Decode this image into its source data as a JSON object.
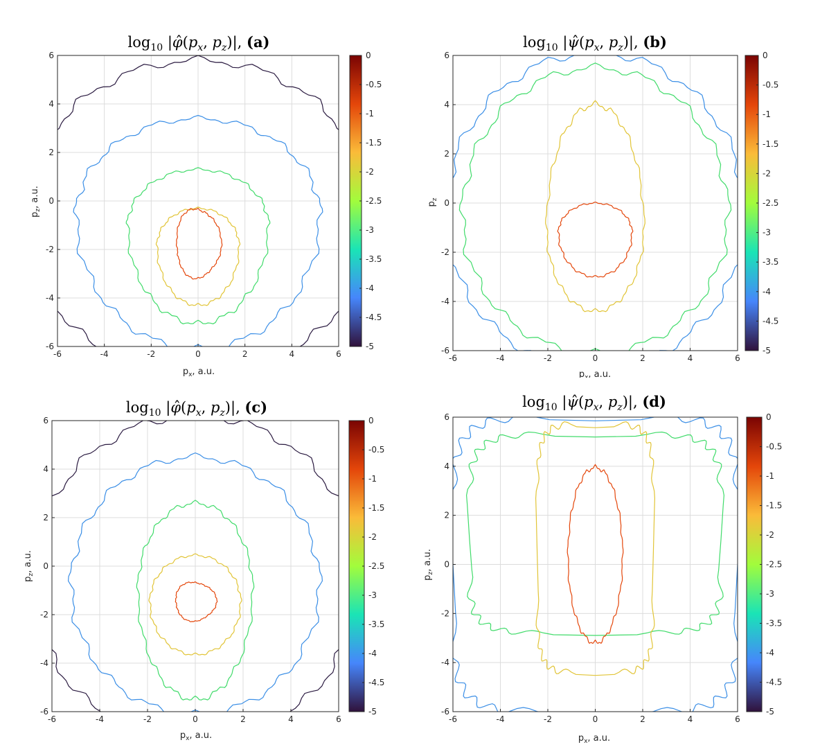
{
  "chart_data": [
    {
      "type": "contour",
      "panel": "a",
      "title_func": "φ",
      "title_text": "log10 |φ̂(px, pz)|, (a)",
      "title_label": "(a)",
      "xlabel": "p_x, a.u.",
      "ylabel": "p_z, a.u.",
      "xlim": [
        -6,
        6
      ],
      "ylim": [
        -6,
        6
      ],
      "xticks": [
        -6,
        -4,
        -2,
        0,
        2,
        4,
        6
      ],
      "yticks": [
        -6,
        -4,
        -2,
        0,
        2,
        4,
        6
      ],
      "colorbar": {
        "range": [
          -5,
          0
        ],
        "ticks": [
          0,
          -0.5,
          -1,
          -1.5,
          -2,
          -2.5,
          -3,
          -3.5,
          -4,
          -4.5,
          -5
        ]
      },
      "grid": true,
      "contours": [
        {
          "level": -1,
          "shape": "blob",
          "cx": 0,
          "cy": -1.9,
          "rx": 0.95,
          "ry_top": 1.6,
          "ry_bot": 1.25
        },
        {
          "level": -2,
          "shape": "ellipse",
          "cx": 0,
          "cy": -1.85,
          "rx": 1.75,
          "ry_top": 1.55,
          "ry_bot": 2.45
        },
        {
          "level": -3,
          "shape": "ellipse",
          "cx": 0,
          "cy": -1.0,
          "rx": 3.0,
          "ry_top": 2.3,
          "ry_bot": 4.05
        },
        {
          "level": -4,
          "shape": "ellipse",
          "cx": 0,
          "cy": -0.6,
          "rx": 5.2,
          "ry_top": 4.0,
          "ry_bot": 5.5
        },
        {
          "level": -5,
          "shape": "ellipse",
          "cx": 0,
          "cy": -0.4,
          "rx": 7.3,
          "ry_top": 6.2,
          "ry_bot": 7.0
        }
      ]
    },
    {
      "type": "contour",
      "panel": "b",
      "title_func": "ψ",
      "title_text": "log10 |ψ̂(px, pz)|, (b)",
      "title_label": "(b)",
      "xlabel": "p_x, a.u.",
      "ylabel": "p_z",
      "xlim": [
        -6,
        6
      ],
      "ylim": [
        -6,
        6
      ],
      "xticks": [
        -6,
        -4,
        -2,
        0,
        2,
        4,
        6
      ],
      "yticks": [
        -6,
        -4,
        -2,
        0,
        2,
        4,
        6
      ],
      "colorbar": {
        "range": [
          -5,
          0
        ],
        "ticks": [
          0,
          -0.5,
          -1,
          -1.5,
          -2,
          -2.5,
          -3,
          -3.5,
          -4,
          -4.5,
          -5
        ]
      },
      "grid": true,
      "contours": [
        {
          "level": -1,
          "shape": "ellipse",
          "cx": 0,
          "cy": -1.2,
          "rx": 1.55,
          "ry_top": 1.2,
          "ry_bot": 1.8
        },
        {
          "level": -2,
          "shape": "ellipse",
          "cx": 0,
          "cy": -1.0,
          "rx": 2.05,
          "ry_top": 5.0,
          "ry_bot": 3.4
        },
        {
          "level": -3,
          "shape": "ellipse",
          "cx": 0,
          "cy": -0.5,
          "rx": 5.6,
          "ry_top": 6.0,
          "ry_bot": 5.6
        },
        {
          "level": -4,
          "shape": "ellipse",
          "cx": 0,
          "cy": -0.5,
          "rx": 6.3,
          "ry_top": 6.6,
          "ry_bot": 6.2
        }
      ]
    },
    {
      "type": "contour",
      "panel": "c",
      "title_func": "φ",
      "title_text": "log10 |φ̂(px, pz)|, (c)",
      "title_label": "(c)",
      "xlabel": "p_x, a.u.",
      "ylabel": "p_z, a.u.",
      "xlim": [
        -6,
        6
      ],
      "ylim": [
        -6,
        6
      ],
      "xticks": [
        -6,
        -4,
        -2,
        0,
        2,
        4,
        6
      ],
      "yticks": [
        -6,
        -4,
        -2,
        0,
        2,
        4,
        6
      ],
      "colorbar": {
        "range": [
          -5,
          0
        ],
        "ticks": [
          0,
          -0.5,
          -1,
          -1.5,
          -2,
          -2.5,
          -3,
          -3.5,
          -4,
          -4.5,
          -5
        ]
      },
      "grid": true,
      "contours": [
        {
          "level": -1,
          "shape": "blob",
          "cx": 0,
          "cy": -1.5,
          "rx": 0.85,
          "ry_top": 0.85,
          "ry_bot": 0.75
        },
        {
          "level": -2,
          "shape": "ellipse",
          "cx": 0,
          "cy": -1.5,
          "rx": 1.9,
          "ry_top": 1.95,
          "ry_bot": 2.15
        },
        {
          "level": -3,
          "shape": "ellipse",
          "cx": 0,
          "cy": -1.0,
          "rx": 2.4,
          "ry_top": 3.6,
          "ry_bot": 4.5
        },
        {
          "level": -4,
          "shape": "ellipse",
          "cx": 0,
          "cy": -0.8,
          "rx": 5.2,
          "ry_top": 5.3,
          "ry_bot": 5.3
        },
        {
          "level": -5,
          "shape": "ellipse",
          "cx": 0,
          "cy": -0.5,
          "rx": 6.8,
          "ry_top": 6.7,
          "ry_bot": 6.8
        }
      ]
    },
    {
      "type": "contour",
      "panel": "d",
      "title_func": "ψ",
      "title_text": "log10 |ψ̂(px, pz)|, (d)",
      "title_label": "(d)",
      "xlabel": "p_x, a.u.",
      "ylabel": "p_z, a.u.",
      "xlim": [
        -6,
        6
      ],
      "ylim": [
        -6,
        6
      ],
      "xticks": [
        -6,
        -4,
        -2,
        0,
        2,
        4,
        6
      ],
      "yticks": [
        -6,
        -4,
        -2,
        0,
        2,
        4,
        6
      ],
      "colorbar": {
        "range": [
          -5,
          0
        ],
        "ticks": [
          0,
          -0.5,
          -1,
          -1.5,
          -2,
          -2.5,
          -3,
          -3.5,
          -4,
          -4.5,
          -5
        ]
      },
      "grid": true,
      "contours": [
        {
          "level": -1,
          "shape": "ellipse",
          "cx": 0,
          "cy": 0.35,
          "rx": 1.15,
          "ry_top": 3.6,
          "ry_bot": 3.55
        },
        {
          "level": -2,
          "shape": "rect",
          "cx": 0,
          "cy": 0.5,
          "rx": 2.45,
          "ry_top": 5.2,
          "ry_bot": 4.9
        },
        {
          "level": -3,
          "shape": "rect",
          "cx": 0,
          "cy": 1.0,
          "rx": 5.3,
          "ry_top": 4.3,
          "ry_bot": 3.8
        },
        {
          "level": -4,
          "shape": "rect",
          "cx": 0,
          "cy": 0.0,
          "rx": 6.0,
          "ry_top": 6.0,
          "ry_bot": 6.0
        }
      ]
    }
  ],
  "colormap": [
    "#30123b",
    "#4686fb",
    "#1ae4b6",
    "#a2fc3c",
    "#fabb39",
    "#e4460a",
    "#7a0403"
  ],
  "level_colors": {
    "-1": "#e4460a",
    "-2": "#e1c436",
    "-3": "#40db6a",
    "-4": "#3a8ee6",
    "-5": "#2a1a40"
  }
}
